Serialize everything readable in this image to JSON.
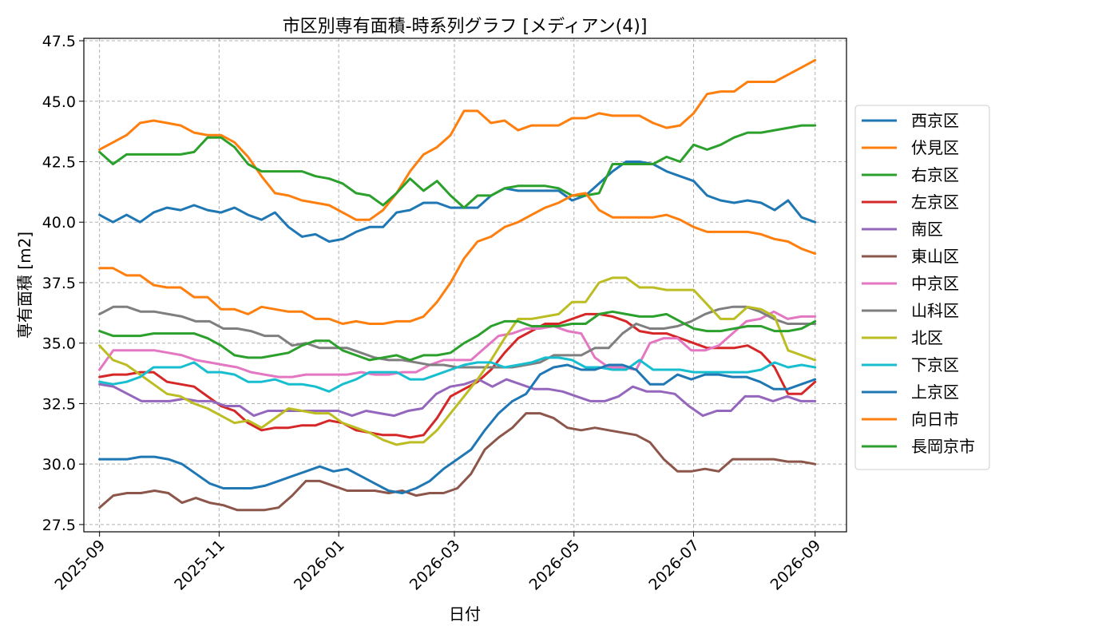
{
  "chart_data": {
    "type": "line",
    "title": "市区別専有面積-時系列グラフ [メディアン(4)]",
    "xlabel": "日付",
    "ylabel": "専有面積 [m2]",
    "ylim": [
      27.2,
      47.6
    ],
    "xlim": [
      "2025-08-24",
      "2026-09-17"
    ],
    "grid": true,
    "legend": "outside-right",
    "yticks": [
      "27.5",
      "30.0",
      "32.5",
      "35.0",
      "37.5",
      "40.0",
      "42.5",
      "45.0",
      "47.5"
    ],
    "xticks": [
      "2025-09",
      "2025-11",
      "2026-01",
      "2026-03",
      "2026-05",
      "2026-07",
      "2026-09"
    ],
    "x_start": "2025-09-01",
    "x_end": "2026-09-01",
    "series": [
      {
        "name": "西京区",
        "color": "#1f77b4",
        "values": [
          40.3,
          40.0,
          40.3,
          40.0,
          40.4,
          40.6,
          40.5,
          40.7,
          40.5,
          40.4,
          40.6,
          40.3,
          40.1,
          40.4,
          39.8,
          39.4,
          39.5,
          39.2,
          39.3,
          39.6,
          39.8,
          39.8,
          40.4,
          40.5,
          40.8,
          40.8,
          40.6,
          40.6,
          40.6,
          41.1,
          41.4,
          41.3,
          41.3,
          41.3,
          41.3,
          40.9,
          41.1,
          41.6,
          42.1,
          42.5,
          42.5,
          42.4,
          42.1,
          41.9,
          41.7,
          41.1,
          40.9,
          40.8,
          40.9,
          40.8,
          40.5,
          40.9,
          40.2,
          40.0
        ]
      },
      {
        "name": "伏見区",
        "color": "#ff7f0e",
        "values": [
          43.0,
          43.3,
          43.6,
          44.1,
          44.2,
          44.1,
          44.0,
          43.7,
          43.6,
          43.6,
          43.3,
          42.7,
          41.9,
          41.2,
          41.1,
          40.9,
          40.8,
          40.7,
          40.4,
          40.1,
          40.1,
          40.5,
          41.2,
          42.1,
          42.8,
          43.1,
          43.6,
          44.6,
          44.6,
          44.1,
          44.2,
          43.8,
          44.0,
          44.0,
          44.0,
          44.3,
          44.3,
          44.5,
          44.4,
          44.4,
          44.4,
          44.1,
          43.9,
          44.0,
          44.5,
          45.3,
          45.4,
          45.4,
          45.8,
          45.8,
          45.8,
          46.1,
          46.4,
          46.7
        ]
      },
      {
        "name": "右京区",
        "color": "#2ca02c",
        "values": [
          42.9,
          42.4,
          42.8,
          42.8,
          42.8,
          42.8,
          42.8,
          42.9,
          43.5,
          43.5,
          43.1,
          42.4,
          42.1,
          42.1,
          42.1,
          42.1,
          41.9,
          41.8,
          41.6,
          41.2,
          41.1,
          40.7,
          41.2,
          41.8,
          41.3,
          41.7,
          41.1,
          40.6,
          41.1,
          41.1,
          41.4,
          41.5,
          41.5,
          41.5,
          41.4,
          41.1,
          41.1,
          41.2,
          42.4,
          42.4,
          42.4,
          42.4,
          42.7,
          42.5,
          43.2,
          43.0,
          43.2,
          43.5,
          43.7,
          43.7,
          43.8,
          43.9,
          44.0,
          44.0
        ]
      },
      {
        "name": "左京区",
        "color": "#d62728",
        "values": [
          33.6,
          33.7,
          33.7,
          33.8,
          33.8,
          33.4,
          33.3,
          33.2,
          32.8,
          32.4,
          32.2,
          31.7,
          31.4,
          31.5,
          31.5,
          31.6,
          31.6,
          31.8,
          31.7,
          31.4,
          31.3,
          31.2,
          31.2,
          31.1,
          31.2,
          31.9,
          32.8,
          33.1,
          33.4,
          33.9,
          34.6,
          35.2,
          35.5,
          35.8,
          35.8,
          36.0,
          36.2,
          36.2,
          36.1,
          35.9,
          35.5,
          35.4,
          35.4,
          35.2,
          35.0,
          34.8,
          34.8,
          34.8,
          34.9,
          34.6,
          34.0,
          32.9,
          32.9,
          33.4
        ]
      },
      {
        "name": "南区",
        "color": "#9467bd",
        "values": [
          33.3,
          33.2,
          32.9,
          32.6,
          32.6,
          32.6,
          32.7,
          32.6,
          32.6,
          32.4,
          32.4,
          32.0,
          32.2,
          32.2,
          32.2,
          32.2,
          32.2,
          32.2,
          32.0,
          32.2,
          32.1,
          32.0,
          32.2,
          32.3,
          32.9,
          33.2,
          33.3,
          33.5,
          33.2,
          33.5,
          33.3,
          33.1,
          33.1,
          33.0,
          32.8,
          32.6,
          32.6,
          32.8,
          33.2,
          33.0,
          33.0,
          32.9,
          32.4,
          32.0,
          32.2,
          32.2,
          32.8,
          32.8,
          32.6,
          32.8,
          32.6,
          32.6
        ]
      },
      {
        "name": "東山区",
        "color": "#8c564b",
        "values": [
          28.2,
          28.7,
          28.8,
          28.8,
          28.9,
          28.8,
          28.4,
          28.6,
          28.4,
          28.3,
          28.1,
          28.1,
          28.1,
          28.2,
          28.7,
          29.3,
          29.3,
          29.1,
          28.9,
          28.9,
          28.9,
          28.8,
          28.9,
          28.7,
          28.8,
          28.8,
          29.0,
          29.6,
          30.6,
          31.1,
          31.5,
          32.1,
          32.1,
          31.9,
          31.5,
          31.4,
          31.5,
          31.4,
          31.3,
          31.2,
          30.9,
          30.2,
          29.7,
          29.7,
          29.8,
          29.7,
          30.2,
          30.2,
          30.2,
          30.2,
          30.1,
          30.1,
          30.0
        ]
      },
      {
        "name": "中京区",
        "color": "#e377c2",
        "values": [
          33.9,
          34.7,
          34.7,
          34.7,
          34.7,
          34.6,
          34.5,
          34.3,
          34.2,
          34.1,
          34.0,
          33.8,
          33.7,
          33.6,
          33.6,
          33.7,
          33.7,
          33.7,
          33.7,
          33.8,
          33.7,
          33.7,
          33.8,
          33.8,
          34.1,
          34.3,
          34.3,
          34.3,
          34.8,
          35.3,
          35.4,
          35.6,
          35.6,
          35.7,
          35.5,
          35.4,
          34.4,
          34.0,
          34.0,
          33.9,
          35.0,
          35.2,
          35.2,
          34.7,
          34.7,
          34.9,
          35.4,
          35.9,
          36.0,
          36.3,
          36.0,
          36.1,
          36.1
        ]
      },
      {
        "name": "山科区",
        "color": "#7f7f7f",
        "values": [
          36.2,
          36.5,
          36.5,
          36.3,
          36.3,
          36.2,
          36.1,
          35.9,
          35.9,
          35.6,
          35.6,
          35.5,
          35.3,
          35.3,
          34.9,
          35.0,
          34.8,
          34.8,
          34.8,
          34.6,
          34.4,
          34.3,
          34.3,
          34.2,
          34.1,
          34.1,
          34.0,
          34.0,
          34.0,
          34.0,
          34.0,
          34.1,
          34.2,
          34.5,
          34.5,
          34.5,
          34.8,
          34.8,
          35.4,
          35.8,
          35.6,
          35.6,
          35.7,
          35.9,
          36.2,
          36.4,
          36.5,
          36.5,
          36.3,
          36.0,
          35.8,
          35.8,
          35.8
        ]
      },
      {
        "name": "北区",
        "color": "#bcbd22",
        "values": [
          34.9,
          34.3,
          34.1,
          33.7,
          33.3,
          32.9,
          32.8,
          32.5,
          32.3,
          32.0,
          31.7,
          31.8,
          31.5,
          31.9,
          32.3,
          32.2,
          32.1,
          32.1,
          31.7,
          31.5,
          31.3,
          31.0,
          30.8,
          30.9,
          30.9,
          31.4,
          32.1,
          32.8,
          33.5,
          34.3,
          35.2,
          36.0,
          36.0,
          36.1,
          36.2,
          36.7,
          36.7,
          37.5,
          37.7,
          37.7,
          37.3,
          37.3,
          37.2,
          37.2,
          37.2,
          36.6,
          36.0,
          36.0,
          36.5,
          36.4,
          36.1,
          34.7,
          34.5,
          34.3
        ]
      },
      {
        "name": "下京区",
        "color": "#17becf",
        "values": [
          33.4,
          33.3,
          33.4,
          33.6,
          34.0,
          34.0,
          34.0,
          34.2,
          33.8,
          33.8,
          33.7,
          33.4,
          33.4,
          33.5,
          33.3,
          33.3,
          33.2,
          33.0,
          33.3,
          33.5,
          33.8,
          33.8,
          33.8,
          33.5,
          33.5,
          33.7,
          33.9,
          34.1,
          34.2,
          34.2,
          34.0,
          34.1,
          34.2,
          34.4,
          34.4,
          34.3,
          34.0,
          34.0,
          33.9,
          33.9,
          34.3,
          33.9,
          33.9,
          33.9,
          33.8,
          33.8,
          33.8,
          33.8,
          33.8,
          33.9,
          34.2,
          34.0,
          34.1,
          34.0
        ]
      },
      {
        "name": "上京区",
        "color": "#1f77b4",
        "values": [
          30.2,
          30.2,
          30.2,
          30.3,
          30.3,
          30.2,
          30.0,
          29.6,
          29.2,
          29.0,
          29.0,
          29.0,
          29.1,
          29.3,
          29.5,
          29.7,
          29.9,
          29.7,
          29.8,
          29.5,
          29.2,
          28.9,
          28.8,
          29.0,
          29.3,
          29.8,
          30.2,
          30.6,
          31.4,
          32.1,
          32.6,
          32.9,
          33.7,
          34.0,
          34.1,
          33.9,
          33.9,
          34.1,
          34.1,
          33.9,
          33.3,
          33.3,
          33.7,
          33.5,
          33.7,
          33.7,
          33.6,
          33.6,
          33.4,
          33.1,
          33.1,
          33.3,
          33.5
        ]
      },
      {
        "name": "向日市",
        "color": "#ff7f0e",
        "values": [
          38.1,
          38.1,
          37.8,
          37.8,
          37.4,
          37.3,
          37.3,
          36.9,
          36.9,
          36.4,
          36.4,
          36.2,
          36.5,
          36.4,
          36.3,
          36.3,
          36.0,
          36.0,
          35.8,
          35.9,
          35.8,
          35.8,
          35.9,
          35.9,
          36.1,
          36.7,
          37.5,
          38.5,
          39.2,
          39.4,
          39.8,
          40.0,
          40.3,
          40.6,
          40.8,
          41.1,
          41.2,
          40.5,
          40.2,
          40.2,
          40.2,
          40.2,
          40.3,
          40.1,
          39.8,
          39.6,
          39.6,
          39.6,
          39.6,
          39.5,
          39.3,
          39.2,
          38.9,
          38.7
        ]
      },
      {
        "name": "長岡京市",
        "color": "#2ca02c",
        "values": [
          35.5,
          35.3,
          35.3,
          35.3,
          35.4,
          35.4,
          35.4,
          35.4,
          35.2,
          34.9,
          34.5,
          34.4,
          34.4,
          34.5,
          34.6,
          34.9,
          35.1,
          35.1,
          34.7,
          34.5,
          34.3,
          34.4,
          34.5,
          34.3,
          34.5,
          34.5,
          34.6,
          35.0,
          35.3,
          35.7,
          35.9,
          35.9,
          35.7,
          35.7,
          35.7,
          35.8,
          35.8,
          36.2,
          36.3,
          36.2,
          36.1,
          36.1,
          36.2,
          35.9,
          35.6,
          35.5,
          35.5,
          35.6,
          35.7,
          35.7,
          35.5,
          35.5,
          35.6,
          35.9
        ]
      }
    ]
  }
}
